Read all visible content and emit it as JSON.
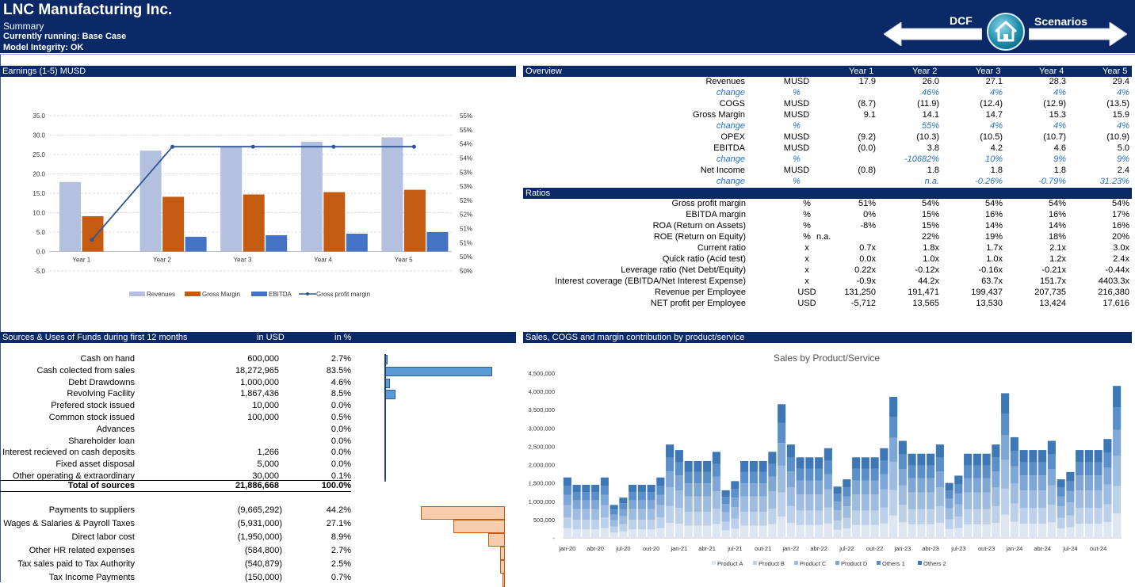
{
  "header": {
    "company": "LNC Manufacturing Inc.",
    "subtitle": "Summary",
    "running": "Currently running: Base Case",
    "integrity": "Model Integrity: OK",
    "nav_left": "DCF",
    "nav_right": "Scenarios"
  },
  "earnings_title": "Earnings (1-5) MUSD",
  "overview": {
    "title": "Overview",
    "years": [
      "Year 1",
      "Year 2",
      "Year 3",
      "Year 4",
      "Year 5"
    ],
    "rows": [
      {
        "label": "Revenues",
        "unit": "MUSD",
        "values": [
          "17.9",
          "26.0",
          "27.1",
          "28.3",
          "29.4"
        ],
        "style": "normal"
      },
      {
        "label": "change",
        "unit": "%",
        "values": [
          "",
          "46%",
          "4%",
          "4%",
          "4%"
        ],
        "style": "change"
      },
      {
        "label": "COGS",
        "unit": "MUSD",
        "values": [
          "(8.7)",
          "(11.9)",
          "(12.4)",
          "(12.9)",
          "(13.5)"
        ],
        "style": "normal"
      },
      {
        "label": "Gross Margin",
        "unit": "MUSD",
        "values": [
          "9.1",
          "14.1",
          "14.7",
          "15.3",
          "15.9"
        ],
        "style": "normal"
      },
      {
        "label": "change",
        "unit": "%",
        "values": [
          "",
          "55%",
          "4%",
          "4%",
          "4%"
        ],
        "style": "change"
      },
      {
        "label": "OPEX",
        "unit": "MUSD",
        "values": [
          "(9.2)",
          "(10.3)",
          "(10.5)",
          "(10.7)",
          "(10.9)"
        ],
        "style": "normal"
      },
      {
        "label": "EBITDA",
        "unit": "MUSD",
        "values": [
          "(0.0)",
          "3.8",
          "4.2",
          "4.6",
          "5.0"
        ],
        "style": "normal"
      },
      {
        "label": "change",
        "unit": "%",
        "values": [
          "",
          "-10682%",
          "10%",
          "9%",
          "9%"
        ],
        "style": "change"
      },
      {
        "label": "Net Income",
        "unit": "MUSD",
        "values": [
          "(0.8)",
          "1.8",
          "1.8",
          "1.8",
          "2.4"
        ],
        "style": "normal"
      },
      {
        "label": "change",
        "unit": "%",
        "values": [
          "",
          "n.a.",
          "-0.26%",
          "-0.79%",
          "31.23%"
        ],
        "style": "change"
      }
    ]
  },
  "ratios": {
    "title": "Ratios",
    "rows": [
      {
        "label": "Gross profit margin",
        "unit": "%",
        "extra": "",
        "values": [
          "51%",
          "54%",
          "54%",
          "54%",
          "54%"
        ]
      },
      {
        "label": "EBITDA margin",
        "unit": "%",
        "extra": "",
        "values": [
          "0%",
          "15%",
          "16%",
          "16%",
          "17%"
        ]
      },
      {
        "label": "ROA (Return on Assets)",
        "unit": "%",
        "extra": "",
        "values": [
          "-8%",
          "15%",
          "14%",
          "14%",
          "16%"
        ]
      },
      {
        "label": "ROE (Return on Equity)",
        "unit": "%",
        "extra": "n.a.",
        "values": [
          "",
          "22%",
          "19%",
          "18%",
          "20%"
        ]
      },
      {
        "label": "Current ratio",
        "unit": "x",
        "extra": "",
        "values": [
          "0.7x",
          "1.8x",
          "1.7x",
          "2.1x",
          "3.0x"
        ]
      },
      {
        "label": "Quick ratio (Acid test)",
        "unit": "x",
        "extra": "",
        "values": [
          "0.0x",
          "1.0x",
          "1.0x",
          "1.2x",
          "2.4x"
        ]
      },
      {
        "label": "Leverage ratio (Net Debt/Equity)",
        "unit": "x",
        "extra": "",
        "values": [
          "0.22x",
          "-0.12x",
          "-0.16x",
          "-0.21x",
          "-0.44x"
        ]
      },
      {
        "label": "Interest coverage (EBITDA/Net Interest Expense)",
        "unit": "x",
        "extra": "",
        "values": [
          "-0.9x",
          "44.2x",
          "63.7x",
          "151.7x",
          "4403.3x"
        ]
      },
      {
        "label": "Revenue per Employee",
        "unit": "USD",
        "extra": "",
        "values": [
          "131,250",
          "191,471",
          "199,437",
          "207,735",
          "216,380"
        ]
      },
      {
        "label": "NET profit per Employee",
        "unit": "USD",
        "extra": "",
        "values": [
          "-5,712",
          "13,565",
          "13,530",
          "13,424",
          "17,616"
        ]
      }
    ]
  },
  "sources": {
    "title": "Sources & Uses of Funds during first 12 months",
    "col_usd": "in USD",
    "col_pct": "in %",
    "sources": [
      {
        "label": "Cash on hand",
        "usd": "600,000",
        "pct": "2.7%",
        "share": 2.7
      },
      {
        "label": "Cash colected from sales",
        "usd": "18,272,965",
        "pct": "83.5%",
        "share": 83.5
      },
      {
        "label": "Debt Drawdowns",
        "usd": "1,000,000",
        "pct": "4.6%",
        "share": 4.6
      },
      {
        "label": "Revolving Facility",
        "usd": "1,867,436",
        "pct": "8.5%",
        "share": 8.5
      },
      {
        "label": "Prefered stock issued",
        "usd": "10,000",
        "pct": "0.0%",
        "share": 0.0
      },
      {
        "label": "Common stock issued",
        "usd": "100,000",
        "pct": "0.5%",
        "share": 0.5
      },
      {
        "label": "Advances",
        "usd": "",
        "pct": "0.0%",
        "share": 0.0
      },
      {
        "label": "Shareholder loan",
        "usd": "",
        "pct": "0.0%",
        "share": 0.0
      },
      {
        "label": "Interest recieved on cash deposits",
        "usd": "1,266",
        "pct": "0.0%",
        "share": 0.0
      },
      {
        "label": "Fixed asset disposal",
        "usd": "5,000",
        "pct": "0.0%",
        "share": 0.0
      },
      {
        "label": "Other operating & extraordinary",
        "usd": "30,000",
        "pct": "0.1%",
        "share": 0.1
      }
    ],
    "total": {
      "label": "Total of sources",
      "usd": "21,886,668",
      "pct": "100.0%"
    },
    "uses": [
      {
        "label": "Payments to suppliers",
        "usd": "(9,665,292)",
        "pct": "44.2%",
        "share": 44.2
      },
      {
        "label": "Wages & Salaries & Payroll Taxes",
        "usd": "(5,931,000)",
        "pct": "27.1%",
        "share": 27.1
      },
      {
        "label": "Direct labor cost",
        "usd": "(1,950,000)",
        "pct": "8.9%",
        "share": 8.9
      },
      {
        "label": "Other HR related expenses",
        "usd": "(584,800)",
        "pct": "2.7%",
        "share": 2.7
      },
      {
        "label": "Tax sales paid to Tax Authority",
        "usd": "(540,879)",
        "pct": "2.5%",
        "share": 2.5
      },
      {
        "label": "Tax Income Payments",
        "usd": "(150,000)",
        "pct": "0.7%",
        "share": 0.7
      }
    ]
  },
  "sales_title": "Sales, COGS and margin contribution by product/service",
  "colors": {
    "navy": "#0b2966",
    "revenues": "#b4c0e0",
    "gross_margin": "#c55a11",
    "ebitda": "#4472c4",
    "source_bar": "#5b9bd5",
    "use_bar": "#f8cbad"
  },
  "chart_data": [
    {
      "type": "bar",
      "categories": [
        "Year 1",
        "Year 2",
        "Year 3",
        "Year 4",
        "Year 5"
      ],
      "series": [
        {
          "name": "Revenues",
          "values": [
            17.9,
            26.0,
            27.1,
            28.3,
            29.4
          ],
          "color": "#b4c0e0"
        },
        {
          "name": "Gross Margin",
          "values": [
            9.1,
            14.1,
            14.7,
            15.3,
            15.9
          ],
          "color": "#c55a11"
        },
        {
          "name": "EBITDA",
          "values": [
            0.0,
            3.8,
            4.2,
            4.6,
            5.0
          ],
          "color": "#4472c4"
        },
        {
          "name": "Gross profit margin",
          "type": "line",
          "axis": "secondary",
          "values": [
            51,
            54,
            54,
            54,
            54
          ],
          "color": "#2f5597"
        }
      ],
      "ylim": [
        -5,
        35
      ],
      "yticks": [
        "-5.0",
        "0.0",
        "5.0",
        "10.0",
        "15.0",
        "20.0",
        "25.0",
        "30.0",
        "35.0"
      ],
      "y2lim": [
        50,
        55
      ],
      "y2ticks": [
        "50%",
        "50%",
        "51%",
        "51%",
        "52%",
        "52%",
        "53%",
        "53%",
        "54%",
        "54%",
        "55%",
        "55%"
      ],
      "legend": "bottom"
    },
    {
      "type": "bar",
      "stacked": true,
      "title": "Sales by Product/Service",
      "x_tick_labels": [
        "jan-20",
        "abr-20",
        "jul-20",
        "out-20",
        "jan-21",
        "abr-21",
        "jul-21",
        "out-21",
        "jan-22",
        "abr-22",
        "jul-22",
        "out-22",
        "jan-23",
        "abr-23",
        "jul-23",
        "out-23",
        "jan-24",
        "abr-24",
        "jul-24",
        "out-24"
      ],
      "yticks": [
        "-",
        "500,000",
        "1,000,000",
        "1,500,000",
        "2,000,000",
        "2,500,000",
        "3,000,000",
        "3,500,000",
        "4,000,000",
        "4,500,000"
      ],
      "ylim": [
        0,
        4500000
      ],
      "totals": [
        1650000,
        1450000,
        1450000,
        1450000,
        1650000,
        900000,
        1100000,
        1450000,
        1450000,
        1450000,
        1650000,
        2550000,
        2400000,
        2100000,
        2100000,
        2100000,
        2350000,
        1300000,
        1550000,
        2100000,
        2100000,
        2100000,
        2350000,
        3650000,
        2550000,
        2200000,
        2200000,
        2200000,
        2450000,
        1400000,
        1600000,
        2200000,
        2200000,
        2200000,
        2450000,
        3850000,
        2650000,
        2300000,
        2300000,
        2300000,
        2550000,
        1500000,
        1700000,
        2300000,
        2300000,
        2300000,
        2550000,
        3950000,
        2750000,
        2400000,
        2400000,
        2400000,
        2650000,
        1600000,
        1800000,
        2400000,
        2400000,
        2400000,
        2700000,
        4150000
      ],
      "series": [
        {
          "name": "Product A",
          "share": 0.16,
          "color": "#dee6f2"
        },
        {
          "name": "Product B",
          "share": 0.18,
          "color": "#bdd0ea"
        },
        {
          "name": "Product C",
          "share": 0.2,
          "color": "#9dbce0"
        },
        {
          "name": "Product D",
          "share": 0.17,
          "color": "#7ea6d6"
        },
        {
          "name": "Others 1",
          "share": 0.15,
          "color": "#5b8fc9"
        },
        {
          "name": "Others 2",
          "share": 0.14,
          "color": "#3d77b6"
        }
      ],
      "legend": "bottom"
    }
  ]
}
